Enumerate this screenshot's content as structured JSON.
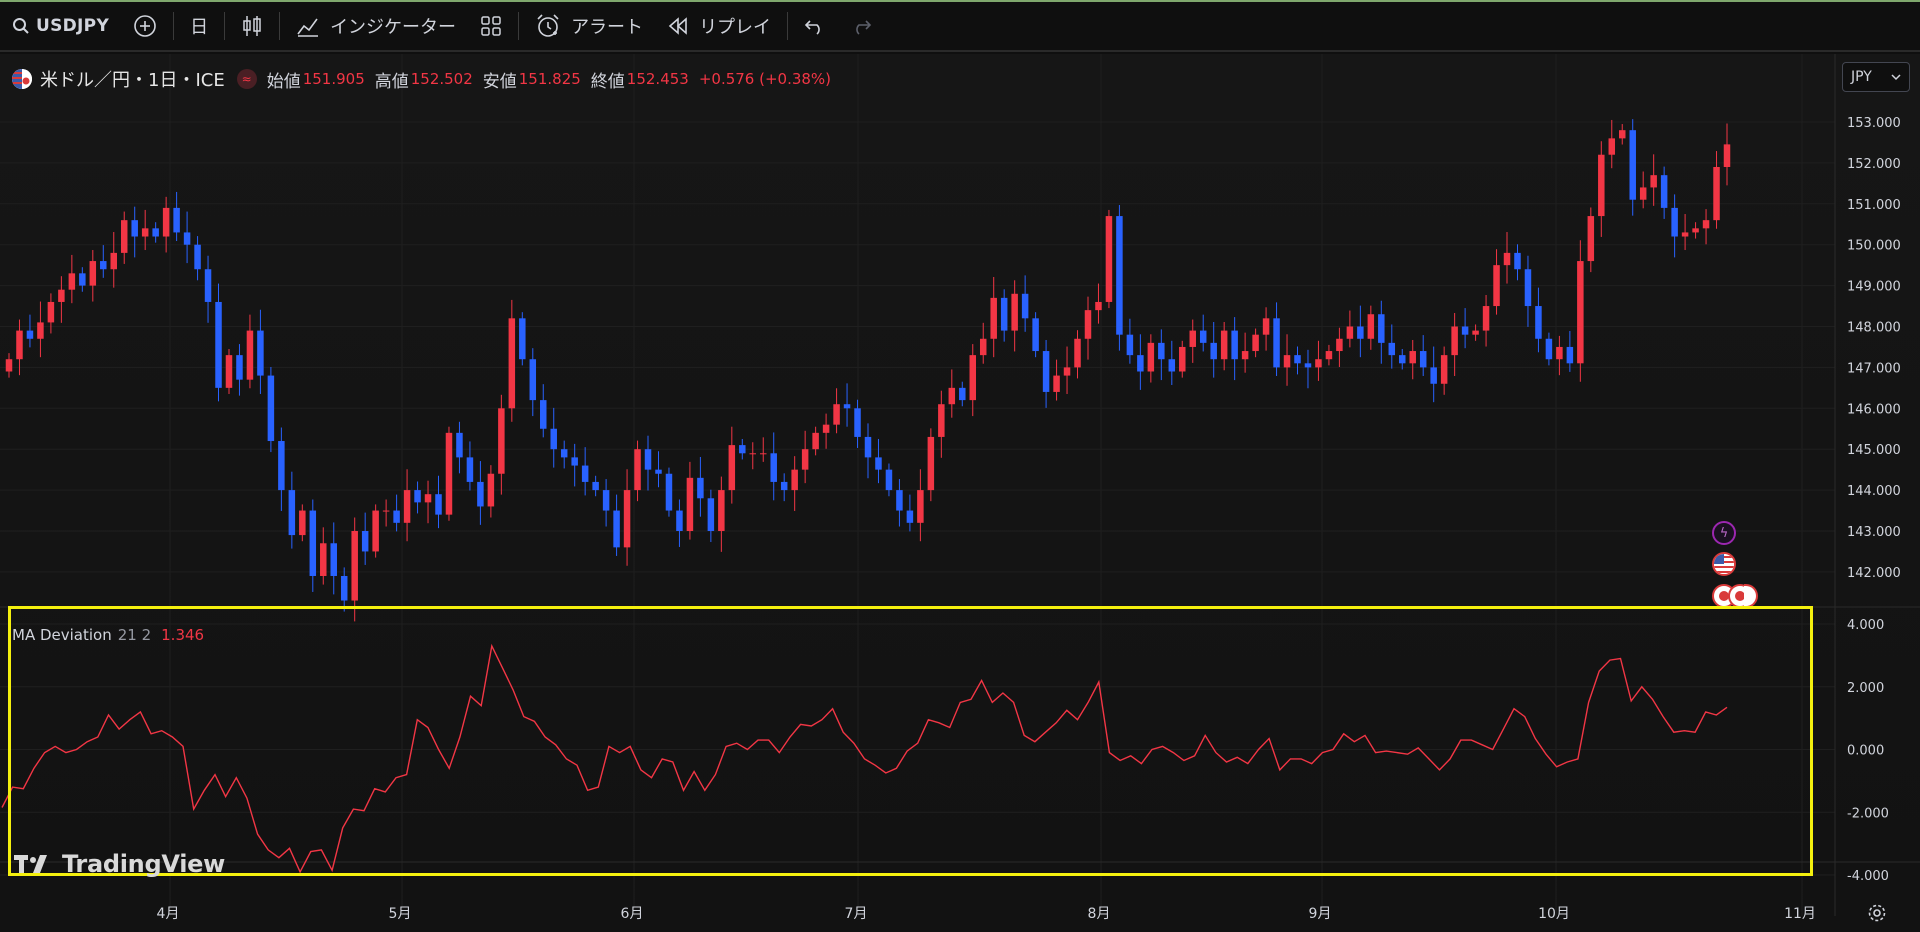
{
  "toolbar": {
    "symbol": "USDJPY",
    "interval": "日",
    "indicators_label": "インジケーター",
    "alert_label": "アラート",
    "replay_label": "リプレイ"
  },
  "legend": {
    "title": "米ドル／円・1日・ICE",
    "open_label": "始値",
    "open": "151.905",
    "high_label": "高値",
    "high": "152.502",
    "low_label": "安値",
    "low": "151.825",
    "close_label": "終値",
    "close": "152.453",
    "change": "+0.576 (+0.38%)"
  },
  "currency": "JPY",
  "indicator": {
    "name": "MA Deviation",
    "params": "21 2",
    "value": "1.346"
  },
  "watermark": "TradingView",
  "colors": {
    "up": "#f23645",
    "down": "#2962ff",
    "indicator_line": "#f23645",
    "highlight": "#f4f00e"
  },
  "chart_data": [
    {
      "type": "candlestick",
      "title": "米ドル／円・1日・ICE",
      "y_ticks": [
        "153.000",
        "152.000",
        "151.000",
        "150.000",
        "149.000",
        "148.000",
        "147.000",
        "146.000",
        "145.000",
        "144.000",
        "143.000",
        "142.000"
      ],
      "x_ticks": [
        "4月",
        "5月",
        "6月",
        "7月",
        "8月",
        "9月",
        "10月",
        "11月"
      ],
      "ylim": [
        141.0,
        153.5
      ],
      "closes": [
        147.2,
        147.9,
        147.7,
        148.1,
        148.6,
        148.9,
        149.3,
        149.0,
        149.6,
        149.4,
        149.8,
        150.6,
        150.2,
        150.4,
        150.2,
        150.9,
        150.3,
        150.0,
        149.4,
        148.6,
        146.5,
        147.3,
        146.7,
        147.9,
        146.8,
        145.2,
        144.0,
        142.9,
        143.5,
        141.9,
        142.7,
        141.9,
        141.3,
        143.0,
        142.5,
        143.5,
        143.5,
        143.2,
        144.0,
        143.7,
        143.9,
        143.4,
        145.4,
        144.8,
        144.2,
        143.6,
        144.4,
        146.0,
        148.2,
        147.2,
        146.2,
        145.5,
        145.0,
        144.8,
        144.6,
        144.2,
        144.0,
        143.5,
        142.6,
        144.0,
        145.0,
        144.5,
        144.4,
        143.5,
        143.0,
        144.3,
        143.8,
        143.0,
        144.0,
        145.1,
        144.9,
        144.9,
        144.9,
        144.2,
        144.0,
        144.5,
        145.0,
        145.4,
        145.6,
        146.1,
        146.0,
        145.3,
        144.8,
        144.5,
        144.0,
        143.5,
        143.2,
        144.0,
        145.3,
        146.1,
        146.5,
        146.2,
        147.3,
        147.7,
        148.7,
        147.9,
        148.8,
        148.2,
        147.4,
        146.4,
        146.8,
        147.0,
        147.7,
        148.4,
        148.6,
        150.7,
        147.8,
        147.3,
        146.9,
        147.6,
        147.2,
        146.9,
        147.5,
        147.9,
        147.6,
        147.2,
        147.9,
        147.2,
        147.4,
        147.8,
        148.2,
        147.0,
        147.3,
        147.1,
        147.0,
        147.2,
        147.4,
        147.7,
        148.0,
        147.7,
        148.3,
        147.6,
        147.3,
        147.1,
        147.4,
        147.0,
        146.6,
        147.3,
        148.0,
        147.8,
        147.9,
        148.5,
        149.5,
        149.8,
        149.4,
        148.5,
        147.7,
        147.2,
        147.5,
        147.1,
        149.6,
        150.7,
        152.2,
        152.6,
        152.8,
        151.1,
        151.4,
        151.7,
        150.9,
        150.2,
        150.3,
        150.4,
        150.6,
        151.9,
        152.453
      ]
    },
    {
      "type": "line",
      "title": "MA Deviation",
      "y_ticks": [
        "4.000",
        "2.000",
        "0.000",
        "-2.000",
        "-4.000"
      ],
      "ylim": [
        -4.0,
        4.0
      ],
      "values": [
        -1.85,
        -1.2,
        -1.25,
        -0.6,
        -0.1,
        0.1,
        -0.1,
        0.0,
        0.25,
        0.4,
        1.1,
        0.65,
        0.95,
        1.2,
        0.5,
        0.6,
        0.4,
        0.1,
        -1.9,
        -1.3,
        -0.8,
        -1.5,
        -0.9,
        -1.55,
        -2.7,
        -3.2,
        -3.45,
        -3.15,
        -3.9,
        -3.25,
        -3.2,
        -3.85,
        -2.5,
        -1.9,
        -1.95,
        -1.25,
        -1.35,
        -0.9,
        -0.8,
        0.95,
        0.7,
        0.0,
        -0.6,
        0.4,
        1.7,
        1.4,
        3.3,
        2.6,
        1.9,
        1.05,
        0.9,
        0.4,
        0.15,
        -0.3,
        -0.5,
        -1.3,
        -1.2,
        0.1,
        -0.1,
        0.1,
        -0.65,
        -0.9,
        -0.3,
        -0.4,
        -1.3,
        -0.7,
        -1.3,
        -0.8,
        0.1,
        0.2,
        0.0,
        0.3,
        0.3,
        -0.1,
        0.4,
        0.8,
        0.75,
        0.95,
        1.3,
        0.55,
        0.2,
        -0.3,
        -0.5,
        -0.75,
        -0.6,
        -0.05,
        0.2,
        0.95,
        0.85,
        0.7,
        1.5,
        1.6,
        2.2,
        1.5,
        1.8,
        1.5,
        0.45,
        0.25,
        0.55,
        0.85,
        1.25,
        0.95,
        1.5,
        2.15,
        -0.1,
        -0.35,
        -0.2,
        -0.45,
        0.0,
        0.1,
        -0.1,
        -0.35,
        -0.2,
        0.45,
        -0.1,
        -0.4,
        -0.25,
        -0.45,
        0.0,
        0.35,
        -0.65,
        -0.3,
        -0.3,
        -0.45,
        -0.1,
        0.0,
        0.5,
        0.25,
        0.45,
        -0.1,
        -0.05,
        -0.1,
        -0.15,
        0.05,
        -0.3,
        -0.65,
        -0.3,
        0.3,
        0.3,
        0.15,
        0.0,
        0.65,
        1.3,
        1.05,
        0.35,
        -0.15,
        -0.55,
        -0.4,
        -0.3,
        1.5,
        2.5,
        2.85,
        2.9,
        1.55,
        2.0,
        1.6,
        1.05,
        0.55,
        0.6,
        0.55,
        1.2,
        1.1,
        1.346
      ]
    }
  ]
}
